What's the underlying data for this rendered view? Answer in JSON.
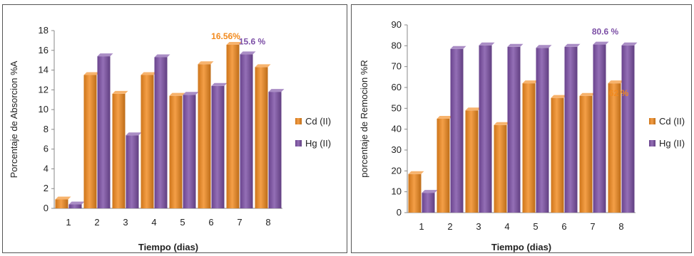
{
  "chart_data": [
    {
      "type": "bar",
      "categories": [
        "1",
        "2",
        "3",
        "4",
        "5",
        "6",
        "7",
        "8"
      ],
      "series": [
        {
          "name": "Cd (II)",
          "color": "#f28a1e",
          "values": [
            0.9,
            13.5,
            11.6,
            13.5,
            11.4,
            14.6,
            16.56,
            14.3
          ]
        },
        {
          "name": "Hg (II)",
          "color": "#7c4fa6",
          "values": [
            0.4,
            15.4,
            7.4,
            15.3,
            11.5,
            12.4,
            15.6,
            11.8
          ]
        }
      ],
      "xlabel": "Tiempo (dias)",
      "ylabel": "Porcentaje de Absorcion %A",
      "ylim": [
        0,
        18
      ],
      "yticks": [
        "0",
        "2",
        "4",
        "6",
        "8",
        "10",
        "12",
        "14",
        "16",
        "18"
      ],
      "annotations": [
        {
          "text": "16.56%",
          "category": "7",
          "series": "Cd (II)",
          "color": "#f28a1e"
        },
        {
          "text": "15.6 %",
          "category": "7",
          "series": "Hg (II)",
          "color": "#7c4fa6"
        }
      ],
      "legend_position": "right"
    },
    {
      "type": "bar",
      "categories": [
        "1",
        "2",
        "3",
        "4",
        "5",
        "6",
        "7",
        "8"
      ],
      "series": [
        {
          "name": "Cd (II)",
          "color": "#f28a1e",
          "values": [
            18.5,
            45,
            49,
            42,
            62,
            55,
            56,
            62
          ]
        },
        {
          "name": "Hg (II)",
          "color": "#7c4fa6",
          "values": [
            9.5,
            78.5,
            80.2,
            79.5,
            79,
            79.5,
            80.6,
            80.2
          ]
        }
      ],
      "xlabel": "Tiempo (dias)",
      "ylabel": "porcentaje de Remocion %R",
      "ylim": [
        0,
        90
      ],
      "yticks": [
        "0",
        "10",
        "20",
        "30",
        "40",
        "50",
        "60",
        "70",
        "80",
        "90"
      ],
      "annotations": [
        {
          "text": "80.6 %",
          "category": "7",
          "series": "Hg (II)",
          "color": "#7c4fa6"
        },
        {
          "text": "62 %",
          "category": "8",
          "series": "Cd (II)",
          "color": "#f28a1e"
        }
      ],
      "legend_position": "right"
    }
  ]
}
